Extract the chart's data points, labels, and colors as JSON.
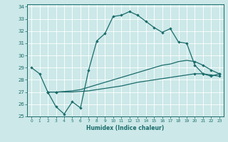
{
  "xlabel": "Humidex (Indice chaleur)",
  "bg_color": "#cce8e8",
  "line_color": "#1a6b6b",
  "xlim": [
    -0.5,
    23.5
  ],
  "ylim": [
    25,
    34.2
  ],
  "xticks": [
    0,
    1,
    2,
    3,
    4,
    5,
    6,
    7,
    8,
    9,
    10,
    11,
    12,
    13,
    14,
    15,
    16,
    17,
    18,
    19,
    20,
    21,
    22,
    23
  ],
  "yticks": [
    25,
    26,
    27,
    28,
    29,
    30,
    31,
    32,
    33,
    34
  ],
  "series0_x": [
    0,
    1,
    2,
    3,
    4,
    5,
    6,
    7,
    8,
    9,
    10,
    11,
    12,
    13,
    14,
    15,
    16,
    17,
    18,
    19,
    20,
    21,
    22,
    23
  ],
  "series0_y": [
    29,
    28.5,
    27,
    25.8,
    25.2,
    26.2,
    25.7,
    28.8,
    31.2,
    31.8,
    33.2,
    33.3,
    33.6,
    33.3,
    32.8,
    32.3,
    31.9,
    32.2,
    31.1,
    31.0,
    29.2,
    28.5,
    28.3,
    28.5
  ],
  "series1_x": [
    2,
    3,
    4,
    5,
    6,
    7,
    8,
    9,
    10,
    11,
    12,
    13,
    14,
    15,
    16,
    17,
    18,
    19,
    20,
    21,
    22,
    23
  ],
  "series1_y": [
    27,
    27,
    27.05,
    27.1,
    27.2,
    27.4,
    27.6,
    27.8,
    28.0,
    28.2,
    28.4,
    28.6,
    28.8,
    29.0,
    29.2,
    29.3,
    29.5,
    29.6,
    29.5,
    29.2,
    28.8,
    28.5
  ],
  "series2_x": [
    2,
    3,
    4,
    5,
    6,
    7,
    8,
    9,
    10,
    11,
    12,
    13,
    14,
    15,
    16,
    17,
    18,
    19,
    20,
    21,
    22,
    23
  ],
  "series2_y": [
    27,
    27,
    27.0,
    27.0,
    27.05,
    27.1,
    27.2,
    27.3,
    27.4,
    27.5,
    27.65,
    27.8,
    27.9,
    28.0,
    28.1,
    28.2,
    28.3,
    28.4,
    28.5,
    28.5,
    28.4,
    28.3
  ],
  "markers1_x": [
    2,
    3,
    20,
    21,
    22,
    23
  ],
  "markers1_y": [
    27,
    27,
    29.5,
    29.2,
    28.8,
    28.5
  ],
  "markers2_x": [
    2,
    3,
    20,
    21,
    22,
    23
  ],
  "markers2_y": [
    27,
    27,
    28.5,
    28.5,
    28.4,
    28.3
  ]
}
